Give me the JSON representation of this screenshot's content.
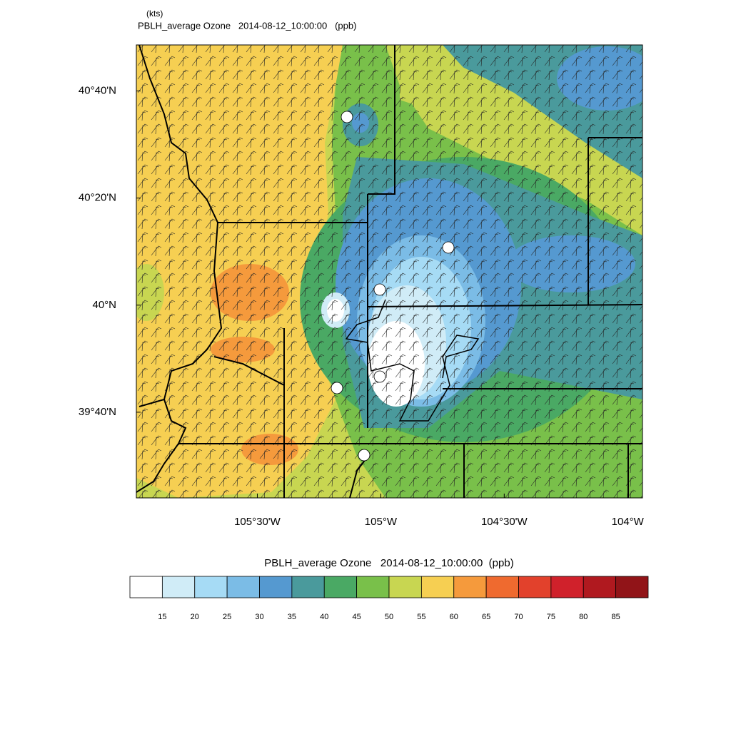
{
  "map": {
    "unit_note": "(kts)",
    "title": "PBLH_average Ozone   2014-08-12_10:00:00   (ppb)",
    "xlim": [
      -105.99,
      -103.94
    ],
    "ylim": [
      40.81,
      39.4
    ],
    "xticks": [
      {
        "value": -105.5,
        "label": "105°30'W"
      },
      {
        "value": -105,
        "label": "105°W"
      },
      {
        "value": -104.5,
        "label": "104°30'W"
      },
      {
        "value": -104,
        "label": "104°W"
      }
    ],
    "yticks": [
      {
        "value": 40.6667,
        "label": "40°40'N"
      },
      {
        "value": 40.3333,
        "label": "40°20'N"
      },
      {
        "value": 40,
        "label": "40°N"
      },
      {
        "value": 39.6667,
        "label": "39°40'N"
      }
    ]
  },
  "colorbar": {
    "title": "PBLH_average Ozone   2014-08-12_10:00:00  (ppb)",
    "levels": [
      15,
      20,
      25,
      30,
      35,
      40,
      45,
      50,
      55,
      60,
      65,
      70,
      75,
      80,
      85
    ],
    "colors": [
      "#ffffff",
      "#d0ecf7",
      "#a6dbf5",
      "#7bbce6",
      "#5599d0",
      "#4a9a9c",
      "#4aa964",
      "#79c04a",
      "#c8d651",
      "#f6cf52",
      "#f59a3c",
      "#ef6a2f",
      "#e2412c",
      "#d0212b",
      "#b0191f",
      "#911418"
    ]
  }
}
